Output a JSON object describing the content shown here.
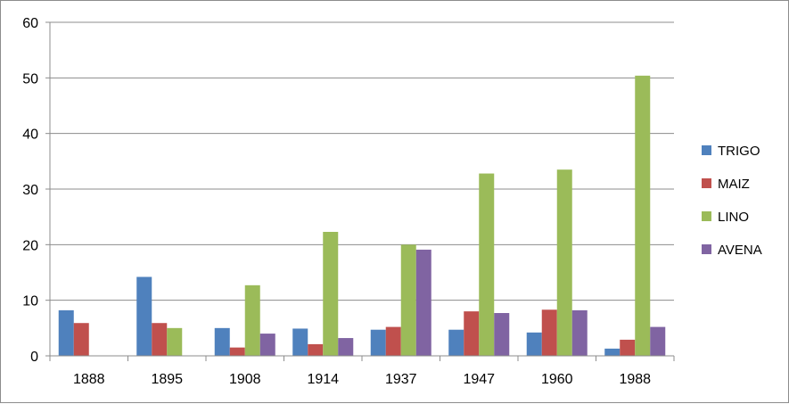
{
  "chart_data": {
    "type": "bar",
    "title": "",
    "xlabel": "",
    "ylabel": "",
    "categories": [
      "1888",
      "1895",
      "1908",
      "1914",
      "1937",
      "1947",
      "1960",
      "1988"
    ],
    "series": [
      {
        "name": "TRIGO",
        "color": "#4F81BD",
        "values": [
          8.2,
          14.2,
          5.0,
          4.9,
          4.7,
          4.7,
          4.2,
          1.3
        ]
      },
      {
        "name": "MAIZ",
        "color": "#C0504D",
        "values": [
          5.9,
          5.9,
          1.5,
          2.1,
          5.2,
          8.0,
          8.3,
          2.9
        ]
      },
      {
        "name": "LINO",
        "color": "#9BBB59",
        "values": [
          0,
          5.0,
          12.7,
          22.3,
          20.0,
          32.8,
          33.5,
          50.4
        ]
      },
      {
        "name": "AVENA",
        "color": "#8064A2",
        "values": [
          0,
          0,
          4.0,
          3.2,
          19.1,
          7.7,
          8.2,
          5.2
        ]
      }
    ],
    "ylim": [
      0,
      60
    ],
    "yticks": [
      0,
      10,
      20,
      30,
      40,
      50,
      60
    ],
    "grid": true,
    "legend_position": "right"
  }
}
